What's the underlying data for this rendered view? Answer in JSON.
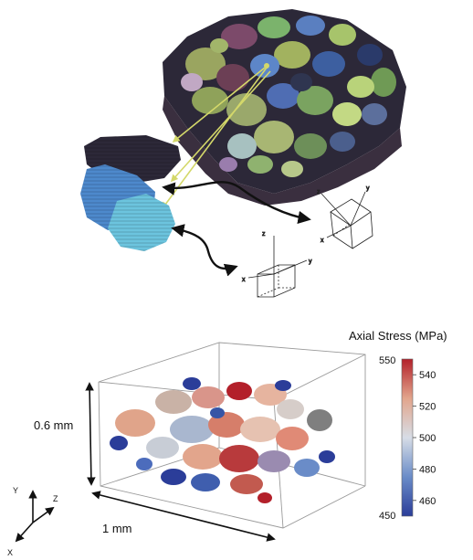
{
  "figure": {
    "colorbar": {
      "title": "Axial Stress (MPa)",
      "min": 450,
      "max": 550,
      "ticks": [
        "540",
        "520",
        "500",
        "480",
        "460"
      ],
      "end_labels": [
        "550",
        "450"
      ],
      "colors": [
        "#2b3d99",
        "#6a8cc8",
        "#d7dde6",
        "#e2a58c",
        "#b3202a"
      ]
    },
    "dimensions": {
      "height": "0.6 mm",
      "width": "1 mm"
    },
    "triad_bottom": {
      "x": "X",
      "y": "Y",
      "z": "Z"
    },
    "cube_icons": [
      {
        "axes": [
          "z",
          "y",
          "x"
        ]
      },
      {
        "axes": [
          "z",
          "y",
          "x"
        ]
      }
    ],
    "colors": {
      "callout_arrows": "#d4d86a",
      "curved_arrows": "#111111",
      "grain_dark": "#2c2838",
      "grain_blue": "#4d89cc",
      "grain_cyan": "#6cc4de"
    }
  }
}
